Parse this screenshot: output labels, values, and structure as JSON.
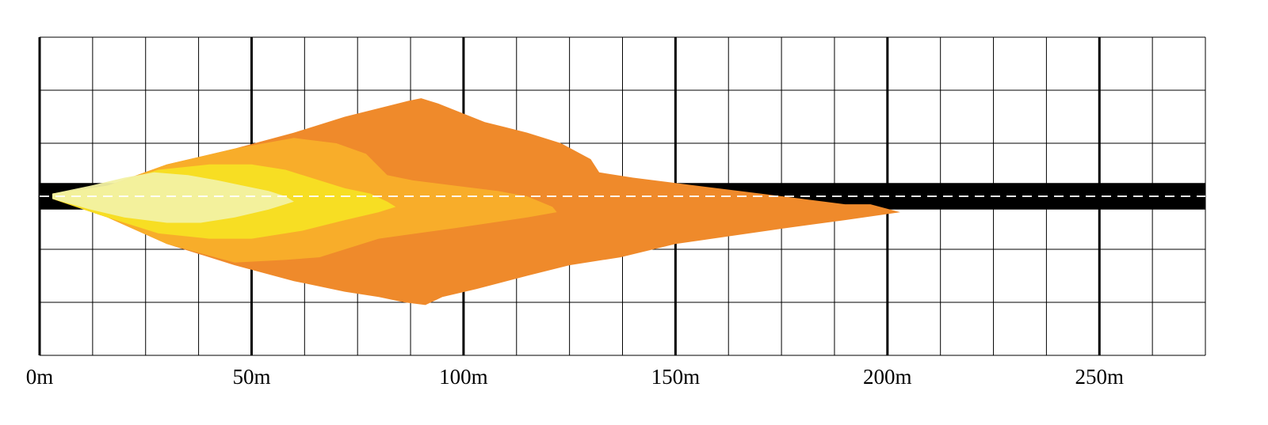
{
  "chart_data": {
    "type": "area",
    "title": "",
    "xlabel": "",
    "ylabel": "",
    "x_unit": "m",
    "xlim": [
      0,
      275
    ],
    "ylim": [
      -30,
      30
    ],
    "grid": true,
    "major_grid_step_m": 50,
    "minor_grid_step_m": 12.5,
    "x_ticks": [
      0,
      50,
      100,
      150,
      200,
      250
    ],
    "x_tick_labels": [
      "0m",
      "50m",
      "100m",
      "150m",
      "200m",
      "250m"
    ],
    "road": {
      "half_width": 2.5,
      "lane_marking": "dashed",
      "color": "#000000",
      "marking_color": "#ffffff"
    },
    "series": [
      {
        "color": "#ef8a2b",
        "opacity": 1,
        "upper": [
          [
            3,
            0.5
          ],
          [
            16,
            2
          ],
          [
            30,
            6
          ],
          [
            46,
            9
          ],
          [
            60,
            12
          ],
          [
            72,
            15
          ],
          [
            82,
            17
          ],
          [
            87,
            18
          ],
          [
            90,
            18.5
          ],
          [
            94,
            17.5
          ],
          [
            105,
            14
          ],
          [
            115,
            12
          ],
          [
            123,
            10
          ],
          [
            130,
            7
          ],
          [
            132,
            4.5
          ],
          [
            140,
            3.5
          ],
          [
            150,
            2.5
          ],
          [
            165,
            1
          ],
          [
            180,
            -0.5
          ],
          [
            190,
            -1.5
          ],
          [
            196,
            -1.5
          ],
          [
            203,
            -3
          ]
        ],
        "lower": [
          [
            3,
            -0.5
          ],
          [
            16,
            -4
          ],
          [
            30,
            -9
          ],
          [
            46,
            -13
          ],
          [
            60,
            -16
          ],
          [
            72,
            -18
          ],
          [
            80,
            -19
          ],
          [
            86,
            -20
          ],
          [
            91,
            -20.5
          ],
          [
            95,
            -19
          ],
          [
            103,
            -17.5
          ],
          [
            115,
            -15
          ],
          [
            125,
            -13
          ],
          [
            137,
            -11.5
          ],
          [
            150,
            -9
          ],
          [
            163,
            -7.5
          ],
          [
            176,
            -6
          ],
          [
            190,
            -4.5
          ],
          [
            203,
            -3
          ]
        ]
      },
      {
        "color": "#f8af2a",
        "opacity": 0.95,
        "upper": [
          [
            3,
            0.5
          ],
          [
            16,
            2
          ],
          [
            30,
            6
          ],
          [
            46,
            9
          ],
          [
            60,
            11
          ],
          [
            70,
            10
          ],
          [
            77,
            8
          ],
          [
            82,
            4
          ],
          [
            88,
            3
          ],
          [
            98,
            2
          ],
          [
            108,
            1
          ],
          [
            115,
            0
          ],
          [
            121,
            -2
          ],
          [
            122,
            -3
          ]
        ],
        "lower": [
          [
            3,
            -0.5
          ],
          [
            16,
            -4
          ],
          [
            30,
            -9
          ],
          [
            46,
            -12.5
          ],
          [
            58,
            -12
          ],
          [
            66,
            -11.5
          ],
          [
            80,
            -8
          ],
          [
            98,
            -6
          ],
          [
            115,
            -4
          ],
          [
            122,
            -3
          ]
        ]
      },
      {
        "color": "#f7e023",
        "opacity": 0.95,
        "upper": [
          [
            3,
            0.5
          ],
          [
            16,
            2
          ],
          [
            28,
            5
          ],
          [
            40,
            6
          ],
          [
            50,
            6
          ],
          [
            58,
            5
          ],
          [
            66,
            3
          ],
          [
            72,
            1.5
          ],
          [
            78,
            0.5
          ],
          [
            82,
            -1
          ],
          [
            84,
            -2
          ]
        ],
        "lower": [
          [
            3,
            -0.5
          ],
          [
            16,
            -4
          ],
          [
            28,
            -7
          ],
          [
            40,
            -8
          ],
          [
            50,
            -8
          ],
          [
            62,
            -6.5
          ],
          [
            72,
            -4.5
          ],
          [
            80,
            -3
          ],
          [
            84,
            -2
          ]
        ]
      },
      {
        "color": "#f2f1a3",
        "opacity": 0.95,
        "upper": [
          [
            3,
            0.5
          ],
          [
            12,
            2
          ],
          [
            20,
            3.5
          ],
          [
            27,
            4.5
          ],
          [
            35,
            4
          ],
          [
            42,
            3
          ],
          [
            48,
            2
          ],
          [
            54,
            1
          ],
          [
            58,
            0
          ],
          [
            60,
            -1
          ]
        ],
        "lower": [
          [
            3,
            -0.5
          ],
          [
            12,
            -2.5
          ],
          [
            20,
            -4
          ],
          [
            30,
            -5
          ],
          [
            38,
            -5
          ],
          [
            46,
            -4
          ],
          [
            54,
            -2.5
          ],
          [
            60,
            -1
          ]
        ]
      }
    ]
  }
}
